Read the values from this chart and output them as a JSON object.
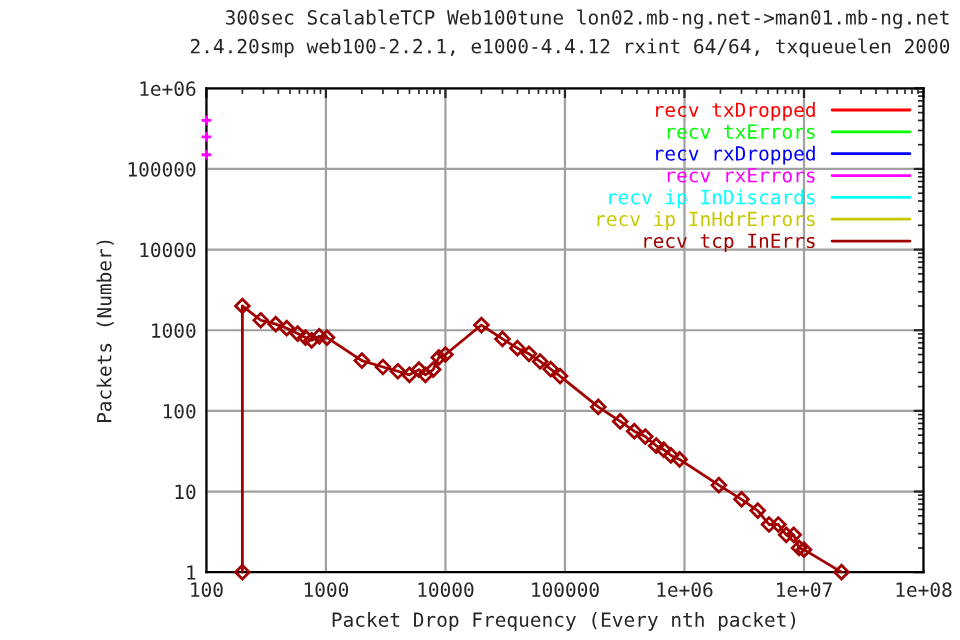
{
  "chart_data": {
    "type": "line",
    "title": "300sec ScalableTCP Web100tune lon02.mb-ng.net->man01.mb-ng.net",
    "subtitle": "2.4.20smp web100-2.2.1, e1000-4.4.12 rxint 64/64, txqueuelen 2000",
    "xlabel": "Packet Drop Frequency (Every nth packet)",
    "ylabel": "Packets (Number)",
    "log": "xy",
    "grid": true,
    "legend": "top right",
    "line_style": "solid",
    "xlim": [
      100,
      100000000
    ],
    "xticks": [
      100,
      1000,
      10000,
      100000,
      {
        "value": 1000000,
        "label": "1e+06"
      },
      {
        "value": 10000000,
        "label": "1e+07"
      },
      {
        "value": 100000000,
        "label": "1e+08"
      }
    ],
    "ylim": [
      1,
      1000000
    ],
    "yticks": [
      1,
      10,
      100,
      1000,
      10000,
      100000,
      {
        "value": 1000000,
        "label": "1e+06"
      }
    ],
    "series": [
      {
        "name": "recv txDropped",
        "color": "#ff0000",
        "marker": "diamond"
      },
      {
        "name": "recv txErrors",
        "color": "#00ff00",
        "marker": "cross"
      },
      {
        "name": "recv rxDropped",
        "color": "#0000ff",
        "marker": "square"
      },
      {
        "name": "recv rxErrors",
        "color": "#ff00ff",
        "marker": "cross",
        "type": "scatter",
        "x": [
          100,
          100,
          100
        ],
        "values": [
          400000,
          250000,
          150000
        ]
      },
      {
        "name": "recv ip InDiscards",
        "color": "#00ffff",
        "marker": "triangle"
      },
      {
        "name": "recv ip InHdrErrors",
        "color": "#c8c800",
        "marker": "star"
      },
      {
        "name": "recv tcp InErrs",
        "color": "#a00000",
        "marker": "diamond",
        "x": [
          200,
          200,
          285,
          380,
          470,
          580,
          675,
          760,
          880,
          1020,
          2000,
          3000,
          4000,
          5000,
          6000,
          6800,
          7900,
          8800,
          10000,
          20000,
          30000,
          40000,
          50000,
          62000,
          76000,
          91000,
          190000,
          290000,
          380000,
          470000,
          580000,
          670000,
          770000,
          910000,
          1940000,
          3000000,
          4100000,
          5100000,
          6100000,
          7100000,
          8200000,
          9100000,
          10000000,
          20600000
        ],
        "values": [
          1,
          2000,
          1330,
          1190,
          1060,
          910,
          810,
          750,
          840,
          810,
          420,
          350,
          310,
          280,
          325,
          280,
          325,
          460,
          500,
          1160,
          780,
          600,
          510,
          410,
          330,
          270,
          112,
          74,
          56,
          48,
          37,
          33,
          28,
          25,
          12,
          8,
          5.8,
          3.9,
          3.9,
          2.9,
          2.9,
          2,
          1.9,
          1
        ]
      }
    ]
  }
}
